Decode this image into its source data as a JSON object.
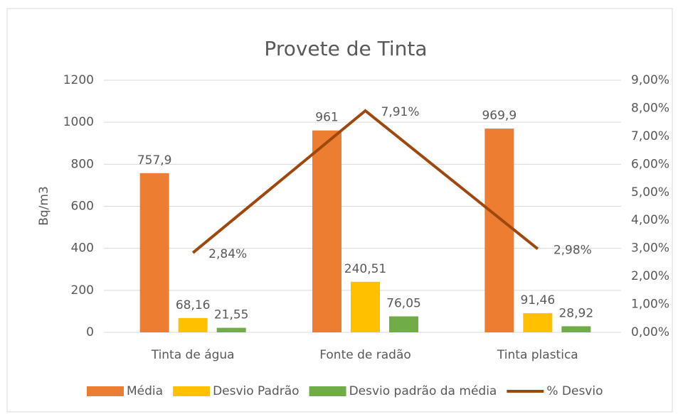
{
  "chart_data": {
    "type": "bar",
    "title": "Provete de Tinta",
    "y_label": "Bq/m3",
    "categories": [
      "Tinta de água",
      "Fonte de radão",
      "Tinta plastica"
    ],
    "series": [
      {
        "name": "Média",
        "type": "bar",
        "color": "#ED7D31",
        "values": [
          757.9,
          961,
          969.9
        ],
        "value_labels": [
          "757,9",
          "961",
          "969,9"
        ]
      },
      {
        "name": "Desvio Padrão",
        "type": "bar",
        "color": "#FFC000",
        "values": [
          68.16,
          240.51,
          91.46
        ],
        "value_labels": [
          "68,16",
          "240,51",
          "91,46"
        ]
      },
      {
        "name": "Desvio padrão da média",
        "type": "bar",
        "color": "#70AD47",
        "values": [
          21.55,
          76.05,
          28.92
        ],
        "value_labels": [
          "21,55",
          "76,05",
          "28,92"
        ]
      },
      {
        "name": "% Desvio",
        "type": "line",
        "axis": "y2",
        "color": "#9E480E",
        "values": [
          2.84,
          7.91,
          2.98
        ],
        "value_labels": [
          "2,84%",
          "7,91%",
          "2,98%"
        ]
      }
    ],
    "ylim": [
      0,
      1200
    ],
    "yticks": [
      0,
      200,
      400,
      600,
      800,
      1000,
      1200
    ],
    "y2lim": [
      0,
      9
    ],
    "y2ticks": [
      {
        "value": 0,
        "label": "0,00%"
      },
      {
        "value": 1,
        "label": "1,00%"
      },
      {
        "value": 2,
        "label": "2,00%"
      },
      {
        "value": 3,
        "label": "3,00%"
      },
      {
        "value": 4,
        "label": "4,00%"
      },
      {
        "value": 5,
        "label": "5,00%"
      },
      {
        "value": 6,
        "label": "6,00%"
      },
      {
        "value": 7,
        "label": "7,00%"
      },
      {
        "value": 8,
        "label": "8,00%"
      },
      {
        "value": 9,
        "label": "9,00%"
      }
    ],
    "grid": true,
    "legend": "bottom"
  }
}
